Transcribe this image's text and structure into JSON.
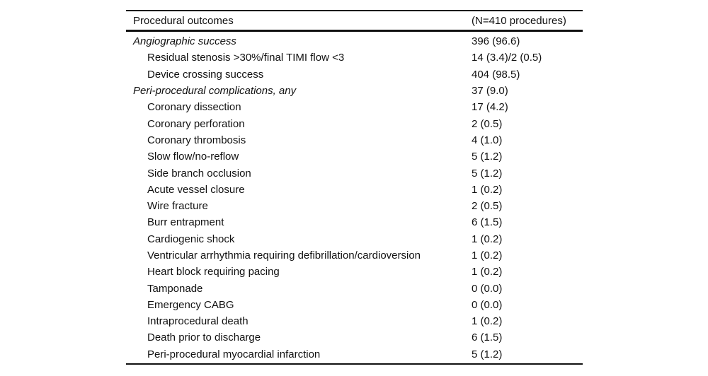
{
  "colors": {
    "background": "#ffffff",
    "text": "#111111",
    "rule": "#111111"
  },
  "table": {
    "header": {
      "col1": "Procedural outcomes",
      "col2": "(N=410 procedures)"
    },
    "rows": [
      {
        "label": "Angiographic success",
        "value": "396 (96.6)",
        "style": "category"
      },
      {
        "label": "Residual stenosis >30%/final TIMI flow <3",
        "value": "14 (3.4)/2 (0.5)",
        "style": "sub"
      },
      {
        "label": "Device crossing success",
        "value": "404 (98.5)",
        "style": "sub"
      },
      {
        "label": "Peri-procedural complications, any",
        "value": "37 (9.0)",
        "style": "category"
      },
      {
        "label": "Coronary dissection",
        "value": "17 (4.2)",
        "style": "sub"
      },
      {
        "label": "Coronary perforation",
        "value": "2 (0.5)",
        "style": "sub"
      },
      {
        "label": "Coronary thrombosis",
        "value": "4 (1.0)",
        "style": "sub"
      },
      {
        "label": "Slow flow/no-reflow",
        "value": "5 (1.2)",
        "style": "sub"
      },
      {
        "label": "Side branch occlusion",
        "value": "5 (1.2)",
        "style": "sub"
      },
      {
        "label": "Acute vessel closure",
        "value": "1 (0.2)",
        "style": "sub"
      },
      {
        "label": "Wire fracture",
        "value": "2 (0.5)",
        "style": "sub"
      },
      {
        "label": "Burr entrapment",
        "value": "6 (1.5)",
        "style": "sub"
      },
      {
        "label": "Cardiogenic shock",
        "value": "1 (0.2)",
        "style": "sub"
      },
      {
        "label": "Ventricular arrhythmia requiring defibrillation/cardioversion",
        "value": "1 (0.2)",
        "style": "sub"
      },
      {
        "label": "Heart block requiring pacing",
        "value": "1 (0.2)",
        "style": "sub"
      },
      {
        "label": "Tamponade",
        "value": "0 (0.0)",
        "style": "sub"
      },
      {
        "label": "Emergency CABG",
        "value": "0 (0.0)",
        "style": "sub"
      },
      {
        "label": "Intraprocedural death",
        "value": "1 (0.2)",
        "style": "sub"
      },
      {
        "label": "Death prior to discharge",
        "value": "6 (1.5)",
        "style": "sub"
      },
      {
        "label": "Peri-procedural myocardial infarction",
        "value": "5 (1.2)",
        "style": "sub"
      }
    ]
  },
  "chart_data": {
    "type": "table",
    "title": "Procedural outcomes",
    "columns": [
      "Procedural outcomes",
      "(N=410 procedures)"
    ],
    "n_procedures": 410
  }
}
